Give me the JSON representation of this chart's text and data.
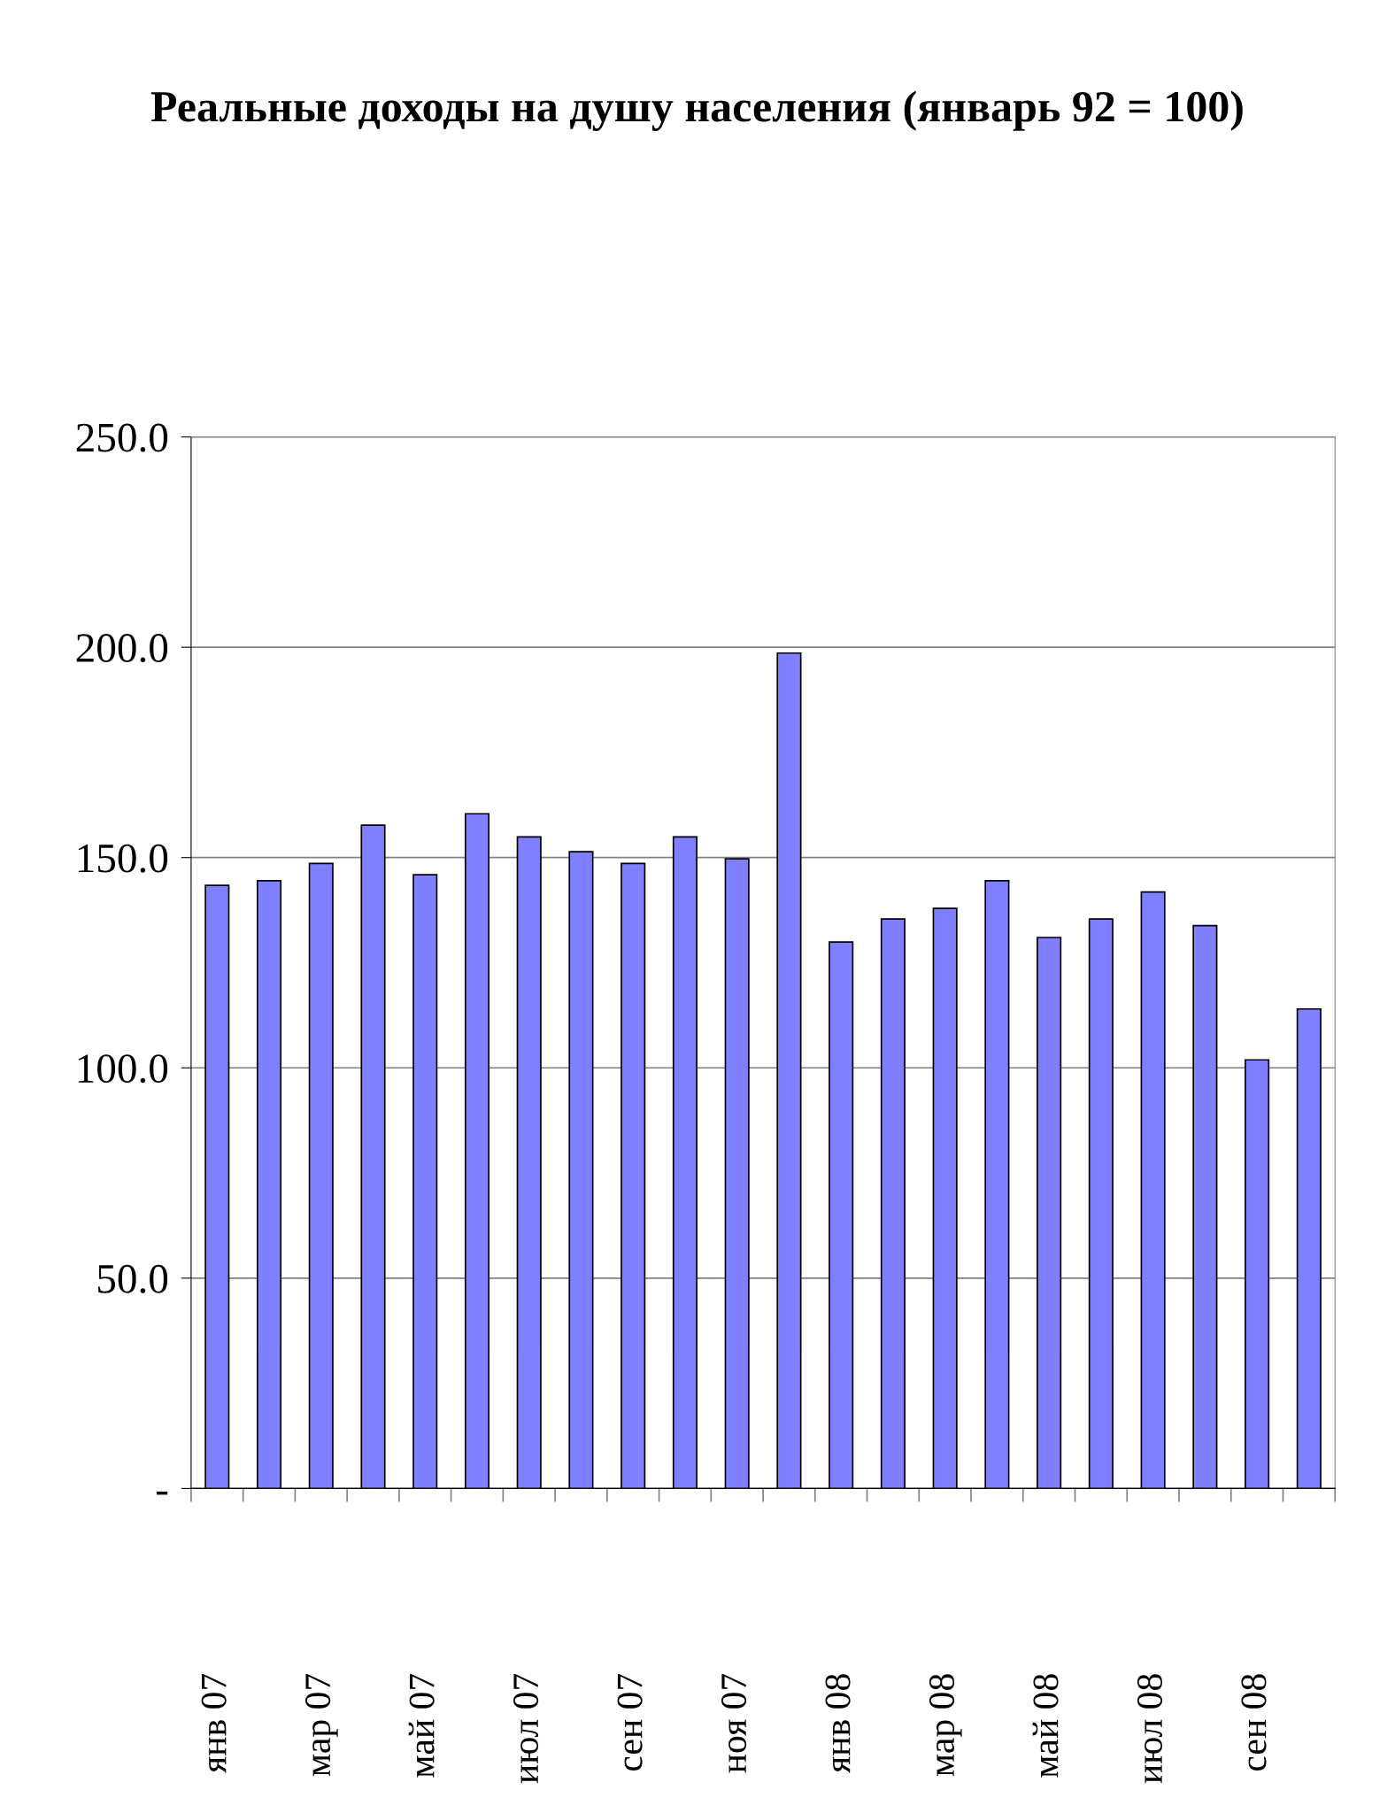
{
  "chart_data": {
    "type": "bar",
    "title": "Реальные доходы на душу населения (январь 92 = 100)",
    "categories": [
      "янв 07",
      null,
      "мар 07",
      null,
      "май 07",
      null,
      "июл 07",
      null,
      "сен 07",
      null,
      "ноя 07",
      null,
      "янв 08",
      null,
      "мар 08",
      null,
      "май 08",
      null,
      "июл 08",
      null,
      "сен 08",
      null
    ],
    "values": [
      143.4,
      144.5,
      148.6,
      157.7,
      145.9,
      160.4,
      154.9,
      151.4,
      148.6,
      154.9,
      149.7,
      198.6,
      129.9,
      135.4,
      137.9,
      144.5,
      131.0,
      135.4,
      141.8,
      133.8,
      101.9,
      114.0
    ],
    "color": "#8080ff",
    "ylim": [
      0,
      250
    ],
    "yticks": [
      {
        "value": 0,
        "label": "-"
      },
      {
        "value": 50,
        "label": "50.0"
      },
      {
        "value": 100,
        "label": "100.0"
      },
      {
        "value": 150,
        "label": "150.0"
      },
      {
        "value": 200,
        "label": "200.0"
      },
      {
        "value": 250,
        "label": "250.0"
      }
    ],
    "grid": "y"
  }
}
